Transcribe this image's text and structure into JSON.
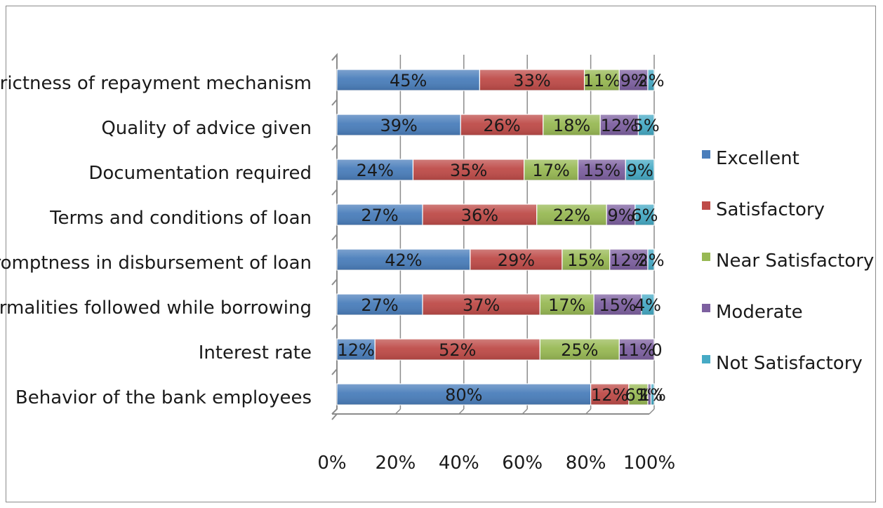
{
  "chart_data": {
    "type": "bar",
    "orientation": "horizontal",
    "stacked": "percent",
    "title": "",
    "xlabel": "",
    "ylabel": "",
    "categories": [
      "Strictness of repayment mechanism",
      "Quality of advice given",
      "Documentation required",
      "Terms and conditions of loan",
      "Promptness in disbursement  of loan",
      "Formalities followed while borrowing",
      "Interest rate",
      "Behavior of the bank employees"
    ],
    "series": [
      {
        "name": "Excellent",
        "color": "#4a7ebb",
        "values": [
          45,
          39,
          24,
          27,
          42,
          27,
          12,
          80
        ],
        "labels": [
          "45%",
          "39%",
          "24%",
          "27%",
          "42%",
          "27%",
          "12%",
          "80%"
        ]
      },
      {
        "name": "Satisfactory",
        "color": "#be4b48",
        "values": [
          33,
          26,
          35,
          36,
          29,
          37,
          52,
          12
        ],
        "labels": [
          "33%",
          "26%",
          "35%",
          "36%",
          "29%",
          "37%",
          "52%",
          "12%"
        ]
      },
      {
        "name": "Near Satisfactory",
        "color": "#98b954",
        "values": [
          11,
          18,
          17,
          22,
          15,
          17,
          25,
          6
        ],
        "labels": [
          "11%",
          "18%",
          "17%",
          "22%",
          "15%",
          "17%",
          "25%",
          "6%"
        ]
      },
      {
        "name": "Moderate",
        "color": "#7d60a0",
        "values": [
          9,
          12,
          15,
          9,
          12,
          15,
          11,
          1
        ],
        "labels": [
          "9%",
          "12%",
          "15%",
          "9%",
          "12%",
          "15%",
          "11%",
          "1%"
        ]
      },
      {
        "name": "Not Satisfactory",
        "color": "#46aac5",
        "values": [
          2,
          5,
          9,
          6,
          2,
          4,
          0,
          1
        ],
        "labels": [
          "2%",
          "5%",
          "9%",
          "6%",
          "2%",
          "4%",
          "0",
          "1%"
        ]
      }
    ],
    "xticks": [
      "0%",
      "20%",
      "40%",
      "60%",
      "80%",
      "100%"
    ],
    "xlim": [
      0,
      100
    ],
    "grid": true,
    "legend": "right"
  }
}
